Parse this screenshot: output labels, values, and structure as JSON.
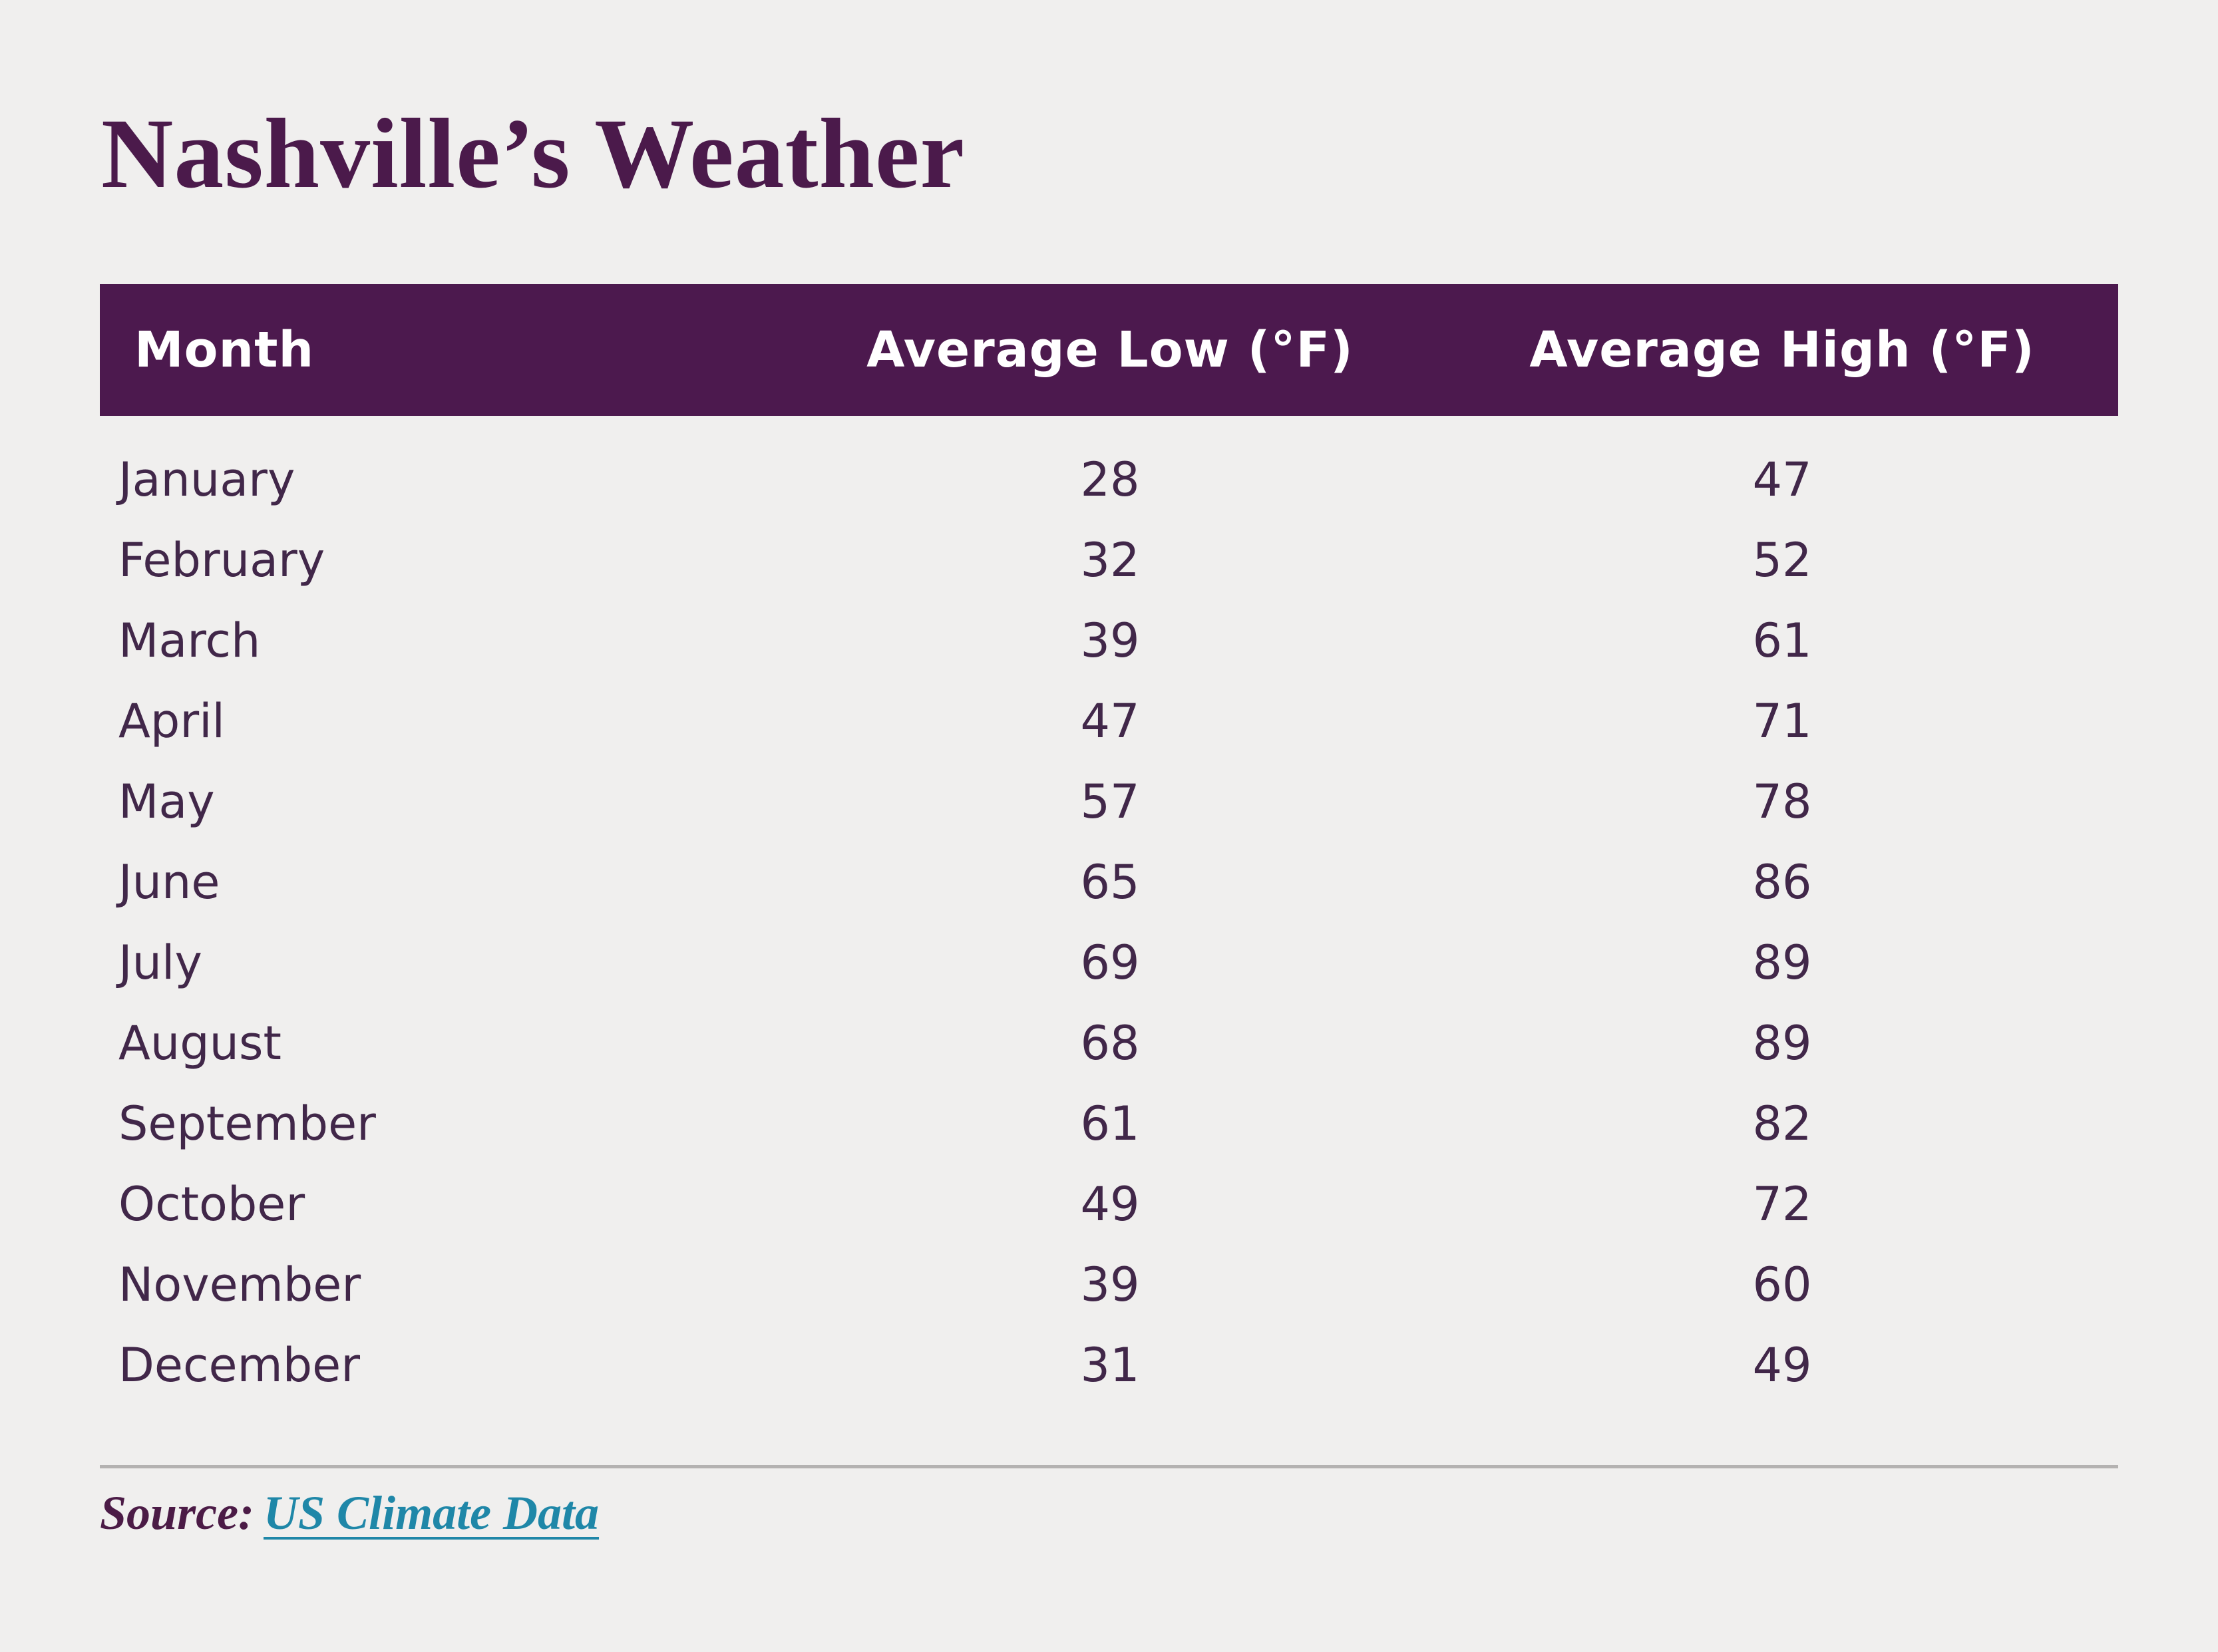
{
  "page": {
    "title": "Nashville’s Weather"
  },
  "colors": {
    "page_bg": "#f0efee",
    "title_color": "#4b1a4b",
    "header_bg": "#4c194e",
    "header_text": "#ffffff",
    "body_text": "#412749",
    "divider_color": "#b4b2b1",
    "source_color": "#4b1b46",
    "link_color": "#1f87a8"
  },
  "table": {
    "columns": [
      "Month",
      "Average Low (°F)",
      "Average High (°F)"
    ],
    "rows": [
      {
        "month": "January",
        "low": "28",
        "high": "47"
      },
      {
        "month": "February",
        "low": "32",
        "high": "52"
      },
      {
        "month": "March",
        "low": "39",
        "high": "61"
      },
      {
        "month": "April",
        "low": "47",
        "high": "71"
      },
      {
        "month": "May",
        "low": "57",
        "high": "78"
      },
      {
        "month": "June",
        "low": "65",
        "high": "86"
      },
      {
        "month": "July",
        "low": "69",
        "high": "89"
      },
      {
        "month": "August",
        "low": "68",
        "high": "89"
      },
      {
        "month": "September",
        "low": "61",
        "high": "82"
      },
      {
        "month": "October",
        "low": "49",
        "high": "72"
      },
      {
        "month": "November",
        "low": "39",
        "high": "60"
      },
      {
        "month": "December",
        "low": "31",
        "high": "49"
      }
    ]
  },
  "footer": {
    "source_label": "Source:",
    "source_link": "US Climate Data"
  },
  "chart_data": {
    "type": "table",
    "title": "Nashville’s Weather",
    "columns": [
      "Month",
      "Average Low (°F)",
      "Average High (°F)"
    ],
    "categories": [
      "January",
      "February",
      "March",
      "April",
      "May",
      "June",
      "July",
      "August",
      "September",
      "October",
      "November",
      "December"
    ],
    "series": [
      {
        "name": "Average Low (°F)",
        "values": [
          28,
          32,
          39,
          47,
          57,
          65,
          69,
          68,
          61,
          49,
          39,
          31
        ]
      },
      {
        "name": "Average High (°F)",
        "values": [
          47,
          52,
          61,
          71,
          78,
          86,
          89,
          89,
          82,
          72,
          60,
          49
        ]
      }
    ],
    "source": "US Climate Data"
  }
}
